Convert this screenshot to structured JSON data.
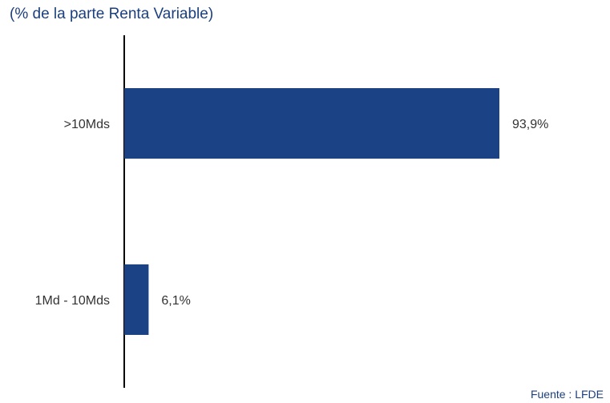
{
  "subtitle": "(% de la parte Renta Variable)",
  "source": "Fuente : LFDE",
  "colors": {
    "bar": "#1b4285",
    "axis": "#000000",
    "text": "#333333",
    "accent": "#1b3f7e"
  },
  "chart_data": {
    "type": "bar",
    "orientation": "horizontal",
    "title": "",
    "subtitle": "(% de la parte Renta Variable)",
    "xlabel": "",
    "ylabel": "",
    "categories": [
      ">10Mds",
      "1Md - 10Mds"
    ],
    "values": [
      93.9,
      6.1
    ],
    "value_labels": [
      "93,9%",
      "6,1%"
    ],
    "xlim": [
      0,
      100
    ],
    "grid": false,
    "legend": "none"
  }
}
